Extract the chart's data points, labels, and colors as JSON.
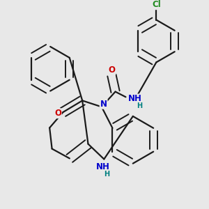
{
  "background_color": "#e8e8e8",
  "line_color": "#1a1a1a",
  "bond_lw": 1.6,
  "atom_colors": {
    "N": "#0000cc",
    "O": "#cc0000",
    "Cl": "#228B22",
    "H": "#008080"
  },
  "fs": 8.5,
  "figsize": [
    3.0,
    3.0
  ],
  "dpi": 100
}
